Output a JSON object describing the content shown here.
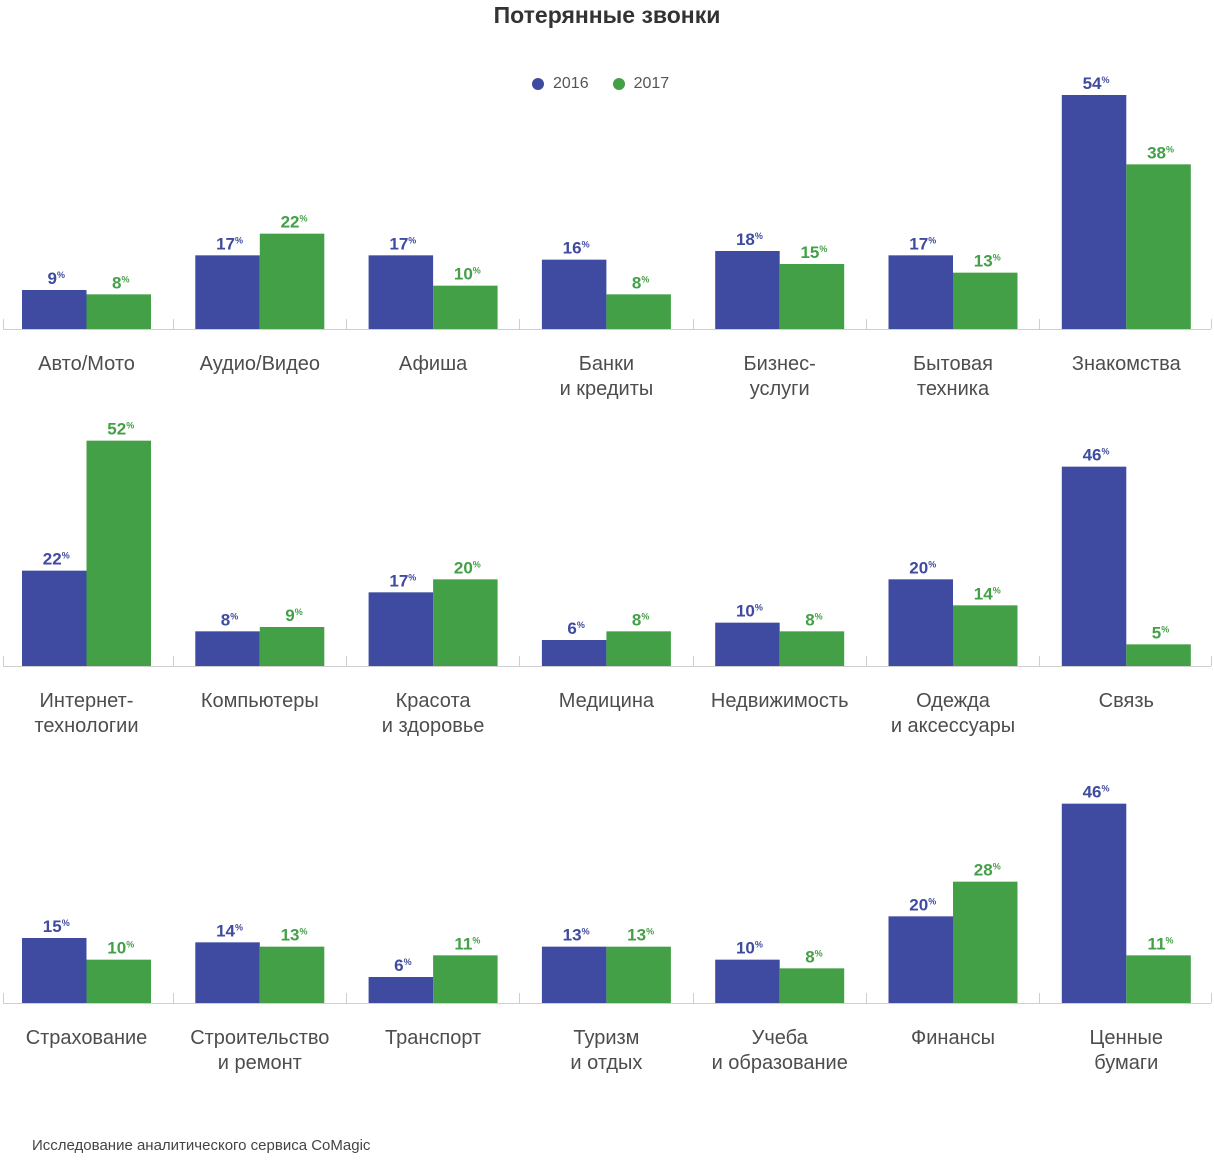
{
  "title": "Потерянные звонки",
  "source_note": "Исследование аналитического сервиса CoMagic",
  "legend": [
    {
      "label": "2016",
      "color": "#3f4ba0"
    },
    {
      "label": "2017",
      "color": "#43a047"
    }
  ],
  "chart_data": {
    "type": "bar",
    "title": "Потерянные звонки",
    "unit": "%",
    "series_names": [
      "2016",
      "2017"
    ],
    "colors": [
      "#3f4ba0",
      "#43a047"
    ],
    "ylim": [
      0,
      56
    ],
    "legend_position": "top-center",
    "grid": false,
    "panels": [
      {
        "name": "Авто/Мото",
        "label_lines": [
          "Авто/Мото"
        ],
        "values": [
          9,
          8
        ]
      },
      {
        "name": "Аудио/Видео",
        "label_lines": [
          "Аудио/Видео"
        ],
        "values": [
          17,
          22
        ]
      },
      {
        "name": "Афиша",
        "label_lines": [
          "Афиша"
        ],
        "values": [
          17,
          10
        ]
      },
      {
        "name": "Банки и кредиты",
        "label_lines": [
          "Банки",
          "и кредиты"
        ],
        "values": [
          16,
          8
        ]
      },
      {
        "name": "Бизнес-услуги",
        "label_lines": [
          "Бизнес-",
          "услуги"
        ],
        "values": [
          18,
          15
        ]
      },
      {
        "name": "Бытовая техника",
        "label_lines": [
          "Бытовая",
          "техника"
        ],
        "values": [
          17,
          13
        ]
      },
      {
        "name": "Знакомства",
        "label_lines": [
          "Знакомства"
        ],
        "values": [
          54,
          38
        ]
      },
      {
        "name": "Интернет-технологии",
        "label_lines": [
          "Интернет-",
          "технологии"
        ],
        "values": [
          22,
          52
        ]
      },
      {
        "name": "Компьютеры",
        "label_lines": [
          "Компьютеры"
        ],
        "values": [
          8,
          9
        ]
      },
      {
        "name": "Красота и здоровье",
        "label_lines": [
          "Красота",
          "и здоровье"
        ],
        "values": [
          17,
          20
        ]
      },
      {
        "name": "Медицина",
        "label_lines": [
          "Медицина"
        ],
        "values": [
          6,
          8
        ]
      },
      {
        "name": "Недвижимость",
        "label_lines": [
          "Недвижимость"
        ],
        "values": [
          10,
          8
        ]
      },
      {
        "name": "Одежда и аксессуары",
        "label_lines": [
          "Одежда",
          "и аксессуары"
        ],
        "values": [
          20,
          14
        ]
      },
      {
        "name": "Связь",
        "label_lines": [
          "Связь"
        ],
        "values": [
          46,
          5
        ]
      },
      {
        "name": "Страхование",
        "label_lines": [
          "Страхование"
        ],
        "values": [
          15,
          10
        ]
      },
      {
        "name": "Строительство и ремонт",
        "label_lines": [
          "Строительство",
          "и ремонт"
        ],
        "values": [
          14,
          13
        ]
      },
      {
        "name": "Транспорт",
        "label_lines": [
          "Транспорт"
        ],
        "values": [
          6,
          11
        ]
      },
      {
        "name": "Туризм и отдых",
        "label_lines": [
          "Туризм",
          "и отдых"
        ],
        "values": [
          13,
          13
        ]
      },
      {
        "name": "Учеба и образование",
        "label_lines": [
          "Учеба",
          "и образование"
        ],
        "values": [
          10,
          8
        ]
      },
      {
        "name": "Финансы",
        "label_lines": [
          "Финансы"
        ],
        "values": [
          20,
          28
        ]
      },
      {
        "name": "Ценные бумаги",
        "label_lines": [
          "Ценные",
          "бумаги"
        ],
        "values": [
          46,
          11
        ]
      }
    ]
  }
}
